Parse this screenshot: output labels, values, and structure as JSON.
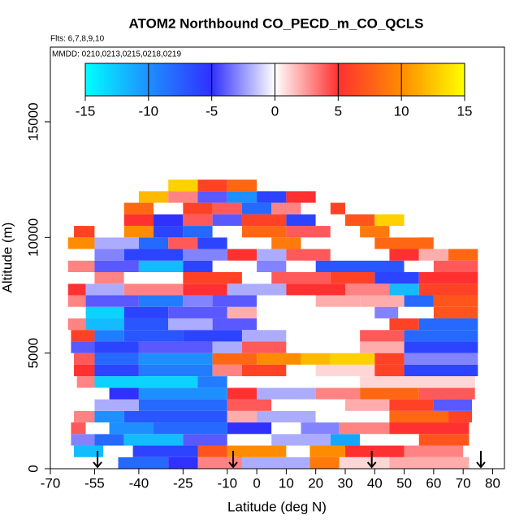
{
  "chart_data": {
    "type": "curtain",
    "title": "ATOM2 Northbound CO_PECD_m_CO_QCLS",
    "subtitle": "Flts: 6,7,8,9,10",
    "annotation": "MMDD: 0210,0213,0215,0218,0219",
    "x_label": "Latitude (deg N)",
    "y_label": "Altitude (m)",
    "xlim": [
      -70,
      84
    ],
    "ylim": [
      0,
      18230
    ],
    "xticks": [
      -70,
      -55,
      -40,
      -25,
      -10,
      0,
      10,
      20,
      30,
      40,
      50,
      60,
      70,
      80
    ],
    "yticks": [
      0,
      5000,
      10000,
      15000
    ],
    "colorbar": {
      "lim": [
        -15,
        15
      ],
      "ticks": [
        -15,
        -10,
        -5,
        0,
        5,
        10,
        15
      ],
      "colorscale": [
        [
          -15,
          "#00ffff"
        ],
        [
          -10,
          "#1e8fff"
        ],
        [
          -5,
          "#3030ff"
        ],
        [
          0,
          "#ffffff"
        ],
        [
          5,
          "#ff3030"
        ],
        [
          10,
          "#ff8c00"
        ],
        [
          15,
          "#ffff00"
        ]
      ]
    },
    "arrows": [
      -54,
      -8,
      39,
      76
    ],
    "rows": [
      {
        "altitude": [
          0,
          500
        ],
        "segments": [
          [
            -47,
            -30,
            -8
          ],
          [
            -30,
            -20,
            -5
          ],
          [
            -20,
            -5,
            3
          ],
          [
            -5,
            18,
            -2
          ],
          [
            18,
            28,
            9
          ],
          [
            28,
            45,
            1
          ],
          [
            45,
            72,
            2
          ]
        ]
      },
      {
        "altitude": [
          500,
          1000
        ],
        "segments": [
          [
            -62,
            -52,
            -12
          ],
          [
            -52,
            -42,
            0
          ],
          [
            -42,
            -20,
            -6
          ],
          [
            -20,
            -10,
            7
          ],
          [
            -10,
            10,
            10
          ],
          [
            10,
            18,
            0
          ],
          [
            18,
            30,
            10
          ],
          [
            30,
            50,
            5
          ],
          [
            50,
            70,
            3
          ]
        ]
      },
      {
        "altitude": [
          1000,
          1500
        ],
        "segments": [
          [
            -63,
            -55,
            -3
          ],
          [
            -55,
            -45,
            -8
          ],
          [
            -45,
            -25,
            -12
          ],
          [
            -25,
            -10,
            -4
          ],
          [
            -10,
            5,
            0
          ],
          [
            5,
            25,
            -2
          ],
          [
            25,
            35,
            -11
          ],
          [
            35,
            55,
            0
          ],
          [
            55,
            72,
            7
          ]
        ]
      },
      {
        "altitude": [
          1500,
          2000
        ],
        "segments": [
          [
            -63,
            -58,
            4
          ],
          [
            -58,
            -50,
            0
          ],
          [
            -50,
            -35,
            -10
          ],
          [
            -35,
            -10,
            -8
          ],
          [
            -10,
            5,
            -5
          ],
          [
            5,
            15,
            0
          ],
          [
            15,
            28,
            -3
          ],
          [
            28,
            45,
            3
          ],
          [
            45,
            72,
            5
          ]
        ]
      },
      {
        "altitude": [
          2000,
          2500
        ],
        "segments": [
          [
            -62,
            -55,
            3
          ],
          [
            -55,
            -45,
            -10
          ],
          [
            -45,
            -10,
            -7
          ],
          [
            -10,
            0,
            2
          ],
          [
            0,
            20,
            -2
          ],
          [
            20,
            45,
            0
          ],
          [
            45,
            65,
            8
          ],
          [
            65,
            73,
            6
          ]
        ]
      },
      {
        "altitude": [
          2500,
          3000
        ],
        "segments": [
          [
            -61,
            -55,
            0
          ],
          [
            -55,
            -40,
            -2
          ],
          [
            -40,
            -10,
            -8
          ],
          [
            -10,
            5,
            4
          ],
          [
            5,
            30,
            0
          ],
          [
            30,
            45,
            2
          ],
          [
            45,
            60,
            6
          ],
          [
            60,
            73,
            -4
          ]
        ]
      },
      {
        "altitude": [
          3000,
          3500
        ],
        "segments": [
          [
            -60,
            -50,
            0
          ],
          [
            -50,
            -40,
            -5
          ],
          [
            -40,
            -10,
            -10
          ],
          [
            -10,
            0,
            5
          ],
          [
            0,
            20,
            -2
          ],
          [
            20,
            35,
            3
          ],
          [
            35,
            55,
            8
          ],
          [
            55,
            74,
            4
          ]
        ]
      },
      {
        "altitude": [
          3500,
          4000
        ],
        "segments": [
          [
            -61,
            -55,
            3
          ],
          [
            -55,
            -20,
            -13
          ],
          [
            -20,
            -10,
            -9
          ],
          [
            -10,
            15,
            0
          ],
          [
            15,
            35,
            0
          ],
          [
            35,
            74,
            1
          ]
        ]
      },
      {
        "altitude": [
          4000,
          4500
        ],
        "segments": [
          [
            -62,
            -55,
            5
          ],
          [
            -55,
            -40,
            -6
          ],
          [
            -40,
            -15,
            -9
          ],
          [
            -15,
            -5,
            3
          ],
          [
            -5,
            10,
            6
          ],
          [
            10,
            20,
            0
          ],
          [
            20,
            40,
            1
          ],
          [
            40,
            50,
            6
          ],
          [
            50,
            75,
            -6
          ]
        ]
      },
      {
        "altitude": [
          4500,
          5000
        ],
        "segments": [
          [
            -62,
            -55,
            4
          ],
          [
            -55,
            -40,
            -8
          ],
          [
            -40,
            -15,
            -10
          ],
          [
            -15,
            0,
            8
          ],
          [
            0,
            15,
            10
          ],
          [
            15,
            25,
            12
          ],
          [
            25,
            40,
            13
          ],
          [
            40,
            50,
            6
          ],
          [
            50,
            75,
            -3
          ]
        ]
      },
      {
        "altitude": [
          5000,
          5500
        ],
        "segments": [
          [
            -63,
            -55,
            -4
          ],
          [
            -55,
            -40,
            -6
          ],
          [
            -40,
            -15,
            -4
          ],
          [
            -15,
            -5,
            -2
          ],
          [
            -5,
            10,
            4
          ],
          [
            10,
            20,
            0
          ],
          [
            20,
            35,
            0
          ],
          [
            35,
            50,
            2
          ],
          [
            50,
            75,
            -6
          ]
        ]
      },
      {
        "altitude": [
          5500,
          6000
        ],
        "segments": [
          [
            -63,
            -55,
            6
          ],
          [
            -55,
            -45,
            -9
          ],
          [
            -45,
            -25,
            -7
          ],
          [
            -25,
            -5,
            -6
          ],
          [
            -5,
            10,
            -2
          ],
          [
            10,
            35,
            0
          ],
          [
            35,
            50,
            4
          ],
          [
            50,
            75,
            -8
          ]
        ]
      },
      {
        "altitude": [
          6000,
          6500
        ],
        "segments": [
          [
            -64,
            -58,
            3
          ],
          [
            -58,
            -45,
            -12
          ],
          [
            -45,
            -30,
            -7
          ],
          [
            -30,
            -15,
            -2
          ],
          [
            -15,
            0,
            -4
          ],
          [
            0,
            45,
            0
          ],
          [
            45,
            55,
            6
          ],
          [
            55,
            75,
            -8
          ]
        ]
      },
      {
        "altitude": [
          6500,
          7000
        ],
        "segments": [
          [
            -64,
            -58,
            0
          ],
          [
            -58,
            -45,
            -13
          ],
          [
            -45,
            -30,
            -6
          ],
          [
            -30,
            -10,
            -4
          ],
          [
            -10,
            0,
            2
          ],
          [
            0,
            40,
            0
          ],
          [
            40,
            48,
            -3
          ],
          [
            48,
            60,
            0
          ],
          [
            60,
            75,
            7
          ]
        ]
      },
      {
        "altitude": [
          7000,
          7500
        ],
        "segments": [
          [
            -64,
            -58,
            3
          ],
          [
            -58,
            -40,
            -4
          ],
          [
            -40,
            -25,
            -9
          ],
          [
            -25,
            -15,
            -3
          ],
          [
            -15,
            0,
            -4
          ],
          [
            0,
            20,
            0
          ],
          [
            20,
            35,
            2
          ],
          [
            35,
            50,
            2
          ],
          [
            50,
            60,
            -8
          ],
          [
            60,
            75,
            7
          ]
        ]
      },
      {
        "altitude": [
          7500,
          8000
        ],
        "segments": [
          [
            -64,
            -58,
            5
          ],
          [
            -58,
            -45,
            -2
          ],
          [
            -45,
            -25,
            3
          ],
          [
            -25,
            -10,
            5
          ],
          [
            -10,
            10,
            -2
          ],
          [
            10,
            30,
            5
          ],
          [
            30,
            45,
            3
          ],
          [
            45,
            55,
            -12
          ],
          [
            55,
            75,
            6
          ]
        ]
      },
      {
        "altitude": [
          8000,
          8500
        ],
        "segments": [
          [
            -64,
            -55,
            0
          ],
          [
            -55,
            -45,
            3
          ],
          [
            -45,
            -25,
            0
          ],
          [
            -25,
            -5,
            6
          ],
          [
            -5,
            5,
            0
          ],
          [
            5,
            25,
            4
          ],
          [
            25,
            40,
            6
          ],
          [
            40,
            55,
            -6
          ],
          [
            55,
            75,
            5
          ]
        ]
      },
      {
        "altitude": [
          8500,
          9000
        ],
        "segments": [
          [
            -64,
            -55,
            3
          ],
          [
            -55,
            -40,
            -4
          ],
          [
            -40,
            -25,
            -12
          ],
          [
            -25,
            -15,
            -6
          ],
          [
            -15,
            0,
            0
          ],
          [
            0,
            10,
            -3
          ],
          [
            10,
            20,
            0
          ],
          [
            20,
            50,
            -7
          ],
          [
            50,
            60,
            0
          ],
          [
            60,
            75,
            4
          ]
        ]
      },
      {
        "altitude": [
          9000,
          9500
        ],
        "segments": [
          [
            -64,
            -55,
            0
          ],
          [
            -55,
            -45,
            -3
          ],
          [
            -45,
            -25,
            -6
          ],
          [
            -25,
            -10,
            -3
          ],
          [
            -10,
            0,
            5
          ],
          [
            0,
            10,
            -2
          ],
          [
            10,
            25,
            4
          ],
          [
            25,
            45,
            0
          ],
          [
            45,
            55,
            5
          ],
          [
            55,
            65,
            2
          ],
          [
            65,
            75,
            8
          ]
        ]
      },
      {
        "altitude": [
          9500,
          10000
        ],
        "segments": [
          [
            -64,
            -55,
            10
          ],
          [
            -55,
            -40,
            -2
          ],
          [
            -40,
            -30,
            -8
          ],
          [
            -30,
            -20,
            4
          ],
          [
            -20,
            -10,
            -6
          ],
          [
            -10,
            5,
            0
          ],
          [
            5,
            15,
            9
          ],
          [
            15,
            40,
            0
          ],
          [
            40,
            60,
            8
          ],
          [
            60,
            65,
            0
          ]
        ]
      },
      {
        "altitude": [
          10000,
          10500
        ],
        "segments": [
          [
            -62,
            -55,
            6
          ],
          [
            -55,
            -45,
            0
          ],
          [
            -45,
            -35,
            10
          ],
          [
            -35,
            -25,
            -6
          ],
          [
            -25,
            -15,
            -8
          ],
          [
            -15,
            -5,
            0
          ],
          [
            -5,
            10,
            8
          ],
          [
            10,
            25,
            4
          ],
          [
            25,
            35,
            0
          ],
          [
            35,
            45,
            9
          ],
          [
            45,
            55,
            0
          ]
        ]
      },
      {
        "altitude": [
          10500,
          11000
        ],
        "segments": [
          [
            -58,
            -45,
            0
          ],
          [
            -45,
            -35,
            5
          ],
          [
            -35,
            -25,
            -5
          ],
          [
            -25,
            -15,
            4
          ],
          [
            -15,
            -5,
            -4
          ],
          [
            -5,
            10,
            6
          ],
          [
            10,
            20,
            -6
          ],
          [
            20,
            30,
            0
          ],
          [
            30,
            40,
            7
          ],
          [
            40,
            50,
            13
          ]
        ]
      },
      {
        "altitude": [
          11000,
          11500
        ],
        "segments": [
          [
            -45,
            -35,
            8
          ],
          [
            -35,
            -25,
            0
          ],
          [
            -25,
            -15,
            6
          ],
          [
            -15,
            -5,
            4
          ],
          [
            -5,
            5,
            -8
          ],
          [
            5,
            15,
            3
          ],
          [
            15,
            25,
            0
          ],
          [
            25,
            30,
            6
          ]
        ]
      },
      {
        "altitude": [
          11500,
          12000
        ],
        "segments": [
          [
            -40,
            -30,
            12
          ],
          [
            -30,
            -20,
            3
          ],
          [
            -20,
            -10,
            -4
          ],
          [
            -10,
            0,
            -10
          ],
          [
            0,
            10,
            -6
          ],
          [
            10,
            20,
            5
          ]
        ]
      },
      {
        "altitude": [
          12000,
          12500
        ],
        "segments": [
          [
            -30,
            -20,
            13
          ],
          [
            -20,
            -10,
            6
          ],
          [
            -10,
            0,
            8
          ]
        ]
      }
    ]
  }
}
